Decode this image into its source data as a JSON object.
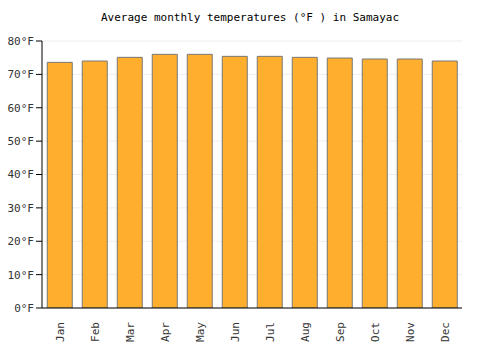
{
  "chart_data": {
    "type": "bar",
    "title": "Average monthly temperatures (°F ) in Samayac",
    "categories": [
      "Jan",
      "Feb",
      "Mar",
      "Apr",
      "May",
      "Jun",
      "Jul",
      "Aug",
      "Sep",
      "Oct",
      "Nov",
      "Dec"
    ],
    "values": [
      73.6,
      74,
      75.1,
      76,
      76,
      75.4,
      75.4,
      75.1,
      74.9,
      74.6,
      74.6,
      74
    ],
    "color": "#ffae2e",
    "ylim": [
      0,
      80
    ],
    "yticks": [
      {
        "value": 0,
        "label": "0°F"
      },
      {
        "value": 10,
        "label": "10°F"
      },
      {
        "value": 20,
        "label": "20°F"
      },
      {
        "value": 30,
        "label": "30°F"
      },
      {
        "value": 40,
        "label": "40°F"
      },
      {
        "value": 50,
        "label": "50°F"
      },
      {
        "value": 60,
        "label": "60°F"
      },
      {
        "value": 70,
        "label": "70°F"
      },
      {
        "value": 80,
        "label": "80°F"
      }
    ],
    "grid": true
  }
}
